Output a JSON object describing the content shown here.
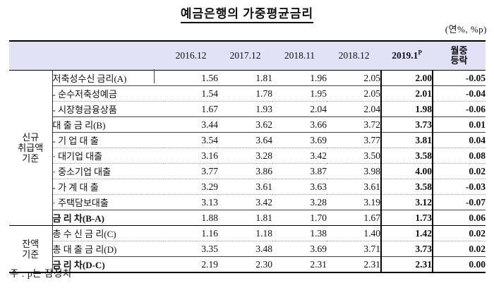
{
  "title": "예금은행의 가중평균금리",
  "unit_note": "(연%, %p)",
  "footnote": "주 : p는 잠정치",
  "colors": {
    "header_bg": "#e2e2f7",
    "border": "#000000"
  },
  "table": {
    "year_headers": [
      "2016.12",
      "2017.12",
      "2018.11",
      "2018.12"
    ],
    "current_header": {
      "text": "2019.1",
      "sup": "P"
    },
    "change_header_lines": [
      "월중",
      "등락"
    ],
    "groups": [
      {
        "label_lines": [
          "신규",
          "취급액",
          "기준"
        ],
        "rows": [
          {
            "label": "저축성수신 금리(A)",
            "indent": 0,
            "bold": false,
            "line": "solid",
            "values": [
              "1.56",
              "1.81",
              "1.96",
              "2.05",
              "2.00",
              "-0.05"
            ]
          },
          {
            "label": "- 순수저축성예금",
            "indent": 1,
            "bold": false,
            "line": "dotted",
            "values": [
              "1.54",
              "1.78",
              "1.95",
              "2.05",
              "2.01",
              "-0.04"
            ]
          },
          {
            "label": "- 시장형금융상품",
            "indent": 1,
            "bold": false,
            "line": "solid",
            "values": [
              "1.67",
              "1.93",
              "2.04",
              "2.04",
              "1.98",
              "-0.06"
            ]
          },
          {
            "label": "대 출 금 리(B)",
            "indent": 0,
            "bold": false,
            "line": "solid",
            "values": [
              "3.44",
              "3.62",
              "3.66",
              "3.72",
              "3.73",
              "0.01"
            ]
          },
          {
            "label": "- 기 업 대 출",
            "indent": 1,
            "bold": false,
            "line": "dotted",
            "values": [
              "3.54",
              "3.64",
              "3.69",
              "3.77",
              "3.81",
              "0.04"
            ]
          },
          {
            "label": "· 대기업 대출",
            "indent": 2,
            "bold": false,
            "line": "dotted",
            "values": [
              "3.16",
              "3.28",
              "3.42",
              "3.50",
              "3.58",
              "0.08"
            ]
          },
          {
            "label": "· 중소기업 대출",
            "indent": 2,
            "bold": false,
            "line": "dotted",
            "values": [
              "3.77",
              "3.86",
              "3.87",
              "3.98",
              "4.00",
              "0.02"
            ]
          },
          {
            "label": "- 가 계 대 출",
            "indent": 1,
            "bold": false,
            "line": "dotted",
            "values": [
              "3.29",
              "3.61",
              "3.63",
              "3.61",
              "3.58",
              "-0.03"
            ]
          },
          {
            "label": "· 주택담보대출",
            "indent": 2,
            "bold": false,
            "line": "solid",
            "values": [
              "3.13",
              "3.42",
              "3.28",
              "3.19",
              "3.12",
              "-0.07"
            ]
          },
          {
            "label": "금 리 차(B-A)",
            "indent": 0,
            "bold": true,
            "line": "section",
            "values": [
              "1.88",
              "1.81",
              "1.70",
              "1.67",
              "1.73",
              "0.06"
            ]
          }
        ]
      },
      {
        "label_lines": [
          "잔액",
          "기준"
        ],
        "rows": [
          {
            "label": "총 수 신 금 리(C)",
            "indent": 0,
            "bold": false,
            "line": "dotted",
            "values": [
              "1.16",
              "1.18",
              "1.38",
              "1.40",
              "1.42",
              "0.02"
            ]
          },
          {
            "label": "총 대 출 금 리(D)",
            "indent": 0,
            "bold": false,
            "line": "solid",
            "values": [
              "3.35",
              "3.48",
              "3.69",
              "3.71",
              "3.73",
              "0.02"
            ]
          },
          {
            "label": "금 리 차(D-C)",
            "indent": 0,
            "bold": true,
            "line": "thick",
            "values": [
              "2.19",
              "2.30",
              "2.31",
              "2.31",
              "2.31",
              "0.00"
            ]
          }
        ]
      }
    ]
  }
}
